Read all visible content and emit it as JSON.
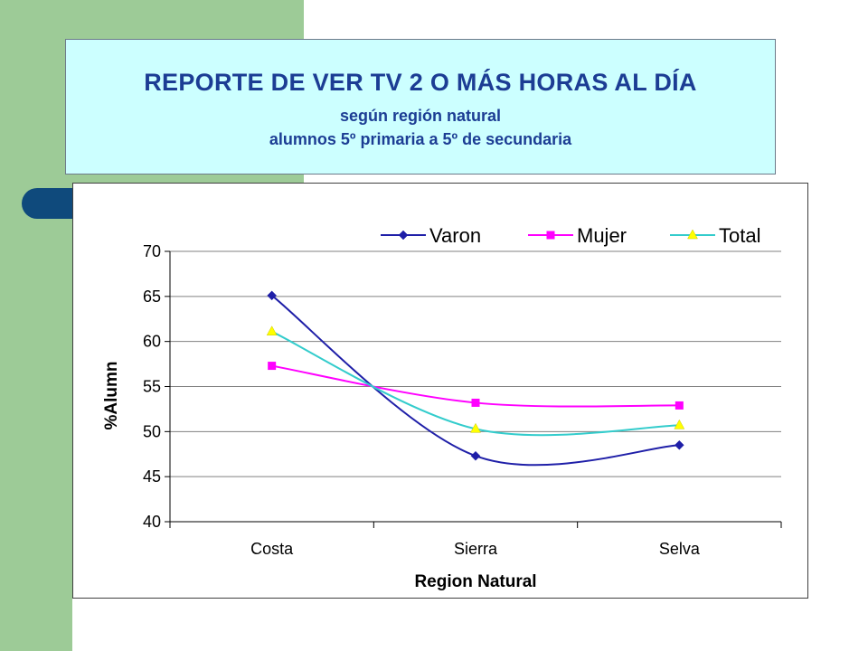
{
  "slide": {
    "title": "REPORTE DE VER TV 2 O MÁS HORAS AL DÍA",
    "subtitle1": "según región natural",
    "subtitle2": "alumnos 5º primaria a 5º de secundaria"
  },
  "chart_data": {
    "type": "line",
    "categories": [
      "Costa",
      "Sierra",
      "Selva"
    ],
    "series": [
      {
        "name": "Varon",
        "values": [
          65.1,
          47.3,
          48.5
        ],
        "color": "#1f1fa8",
        "marker": "diamond"
      },
      {
        "name": "Mujer",
        "values": [
          57.3,
          53.2,
          52.9
        ],
        "color": "#ff00ff",
        "marker": "square"
      },
      {
        "name": "Total",
        "values": [
          61.1,
          50.3,
          50.7
        ],
        "color": "#33cccc",
        "marker": "triangle",
        "marker_color": "#ffff00"
      }
    ],
    "xlabel": "Region Natural",
    "ylabel": "%Alumn",
    "ylim": [
      40,
      70
    ],
    "yticks": [
      40,
      45,
      50,
      55,
      60,
      65,
      70
    ],
    "grid": true,
    "legend_position": "top",
    "smoothed": true
  }
}
